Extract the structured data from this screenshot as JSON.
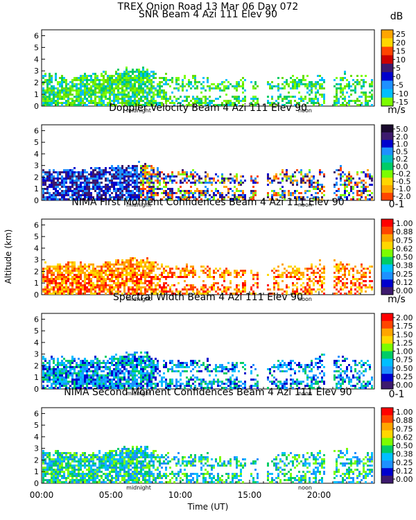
{
  "figure": {
    "main_title": "TREX Onion Road  13 Mar 06 Day 072",
    "ylabel": "Altitude (km)",
    "xlabel": "Time (UT)",
    "x_tick_labels": [
      "00:00",
      "05:00",
      "10:00",
      "15:00",
      "20:00"
    ],
    "marker_labels": {
      "midnight": "midnight",
      "noon": "noon"
    }
  },
  "chart_data": [
    {
      "type": "heatmap",
      "title": "SNR Beam 4 Azi 111 Elev 90",
      "units": "dB",
      "x_range_hours": [
        0,
        24
      ],
      "ylim": [
        0,
        6.5
      ],
      "y_ticks": [
        0,
        1,
        2,
        3,
        4,
        5,
        6
      ],
      "colorbar_ticks": [
        "25",
        "20",
        "15",
        "10",
        "5",
        "0",
        "-5",
        "-10",
        "-15"
      ],
      "colorbar_colors": [
        "#ffa500",
        "#ffd700",
        "#ff4500",
        "#cc0000",
        "#3d1a6e",
        "#0000cd",
        "#1e90ff",
        "#00bfff",
        "#7cfc00"
      ],
      "dominant_colors": [
        "#7cfc00",
        "#66dd00",
        "#00cc66",
        "#00bfff"
      ]
    },
    {
      "type": "heatmap",
      "title": "Doppler Velocity Beam 4 Azi 111 Elev 90",
      "units": "m/s",
      "x_range_hours": [
        0,
        24
      ],
      "ylim": [
        0,
        6.5
      ],
      "y_ticks": [
        0,
        1,
        2,
        3,
        4,
        5,
        6
      ],
      "colorbar_ticks": [
        "5.0",
        "2.0",
        "1.0",
        "0.5",
        "0.2",
        "0.0",
        "-0.2",
        "-0.5",
        "-1.0",
        "-2.0"
      ],
      "colorbar_colors": [
        "#1a0a2e",
        "#3d1a6e",
        "#0000cd",
        "#1e90ff",
        "#00c0c0",
        "#00cc66",
        "#7cfc00",
        "#ffd700",
        "#ffa500",
        "#ff4500"
      ],
      "dominant_colors": [
        "#3d1a6e",
        "#0000cd",
        "#1e90ff",
        "#7cfc00",
        "#ffa500",
        "#ff4500"
      ]
    },
    {
      "type": "heatmap",
      "title": "NIMA First Moment Confidences Beam 4 Azi 111 Elev 90",
      "units": "0-1",
      "x_range_hours": [
        0,
        24
      ],
      "ylim": [
        0,
        6.5
      ],
      "y_ticks": [
        0,
        1,
        2,
        3,
        4,
        5,
        6
      ],
      "colorbar_ticks": [
        "1.00",
        "0.88",
        "0.75",
        "0.62",
        "0.50",
        "0.38",
        "0.25",
        "0.12",
        "0.00"
      ],
      "colorbar_colors": [
        "#ff0000",
        "#ff4500",
        "#ffa500",
        "#ffd700",
        "#7cfc00",
        "#00cc66",
        "#00bfff",
        "#1e90ff",
        "#0000cd",
        "#3d1a6e"
      ],
      "dominant_colors": [
        "#ff0000",
        "#ff4500",
        "#ffa500",
        "#ffd700"
      ]
    },
    {
      "type": "heatmap",
      "title": "Spectral Width Beam 4 Azi 111 Elev 90",
      "units": "m/s",
      "x_range_hours": [
        0,
        24
      ],
      "ylim": [
        0,
        6.5
      ],
      "y_ticks": [
        0,
        1,
        2,
        3,
        4,
        5,
        6
      ],
      "colorbar_ticks": [
        "2.00",
        "1.75",
        "1.50",
        "1.25",
        "1.00",
        "0.75",
        "0.50",
        "0.25",
        "0.00"
      ],
      "colorbar_colors": [
        "#ff0000",
        "#ff4500",
        "#ffa500",
        "#ffd700",
        "#7cfc00",
        "#00cc66",
        "#00bfff",
        "#1e90ff",
        "#0000cd",
        "#3d1a6e"
      ],
      "dominant_colors": [
        "#00cc66",
        "#00bfff",
        "#1e90ff",
        "#0000cd"
      ]
    },
    {
      "type": "heatmap",
      "title": "NIMA Second Moment Confidences Beam 4 Azi 111 Elev 90",
      "units": "0-1",
      "x_range_hours": [
        0,
        24
      ],
      "ylim": [
        0,
        6.5
      ],
      "y_ticks": [
        0,
        1,
        2,
        3,
        4,
        5,
        6
      ],
      "colorbar_ticks": [
        "1.00",
        "0.88",
        "0.75",
        "0.62",
        "0.50",
        "0.38",
        "0.25",
        "0.12",
        "0.00"
      ],
      "colorbar_colors": [
        "#ff0000",
        "#ff4500",
        "#ffa500",
        "#ffd700",
        "#7cfc00",
        "#00cc66",
        "#00bfff",
        "#1e90ff",
        "#0000cd",
        "#3d1a6e"
      ],
      "dominant_colors": [
        "#7cfc00",
        "#00cc66",
        "#00bfff",
        "#1e90ff"
      ]
    }
  ]
}
